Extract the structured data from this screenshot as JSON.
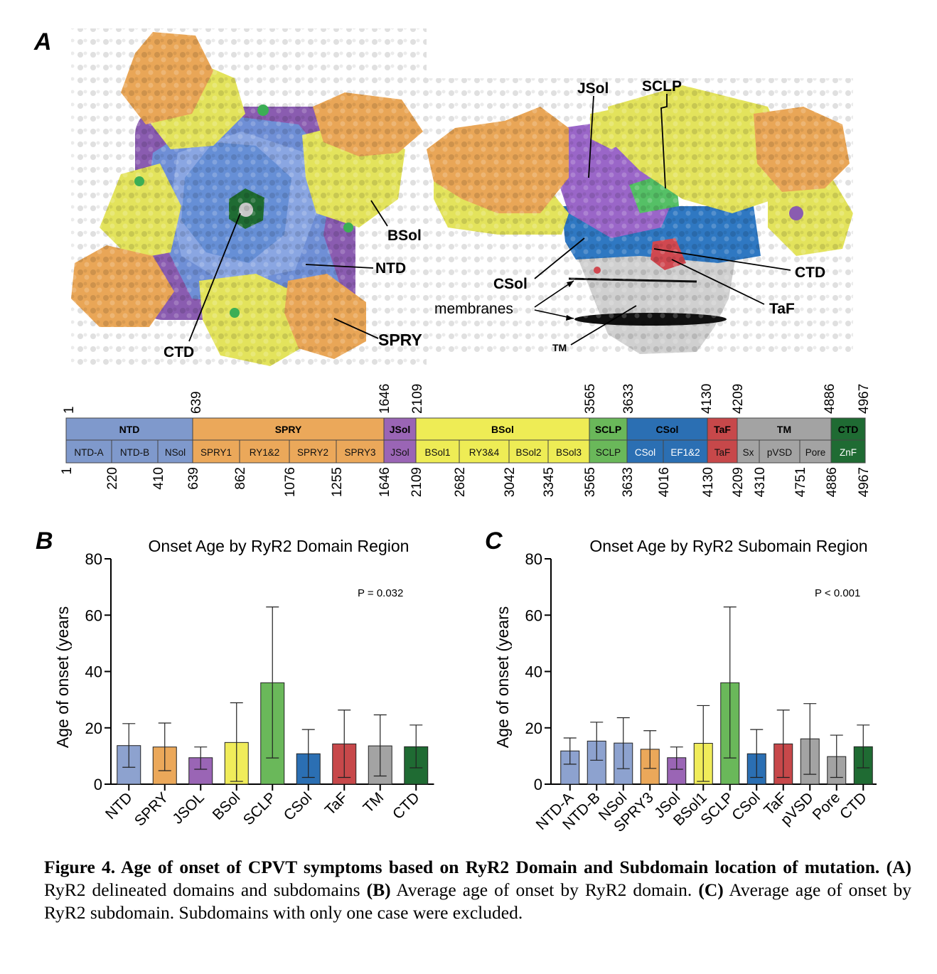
{
  "panel_a": {
    "letter": "A",
    "left_labels": {
      "bsol": "BSol",
      "ntd": "NTD",
      "spry": "SPRY",
      "ctd": "CTD"
    },
    "right_labels": {
      "jsol": "JSol",
      "sclp": "SCLP",
      "ctd": "CTD",
      "csol": "CSol",
      "taf": "TaF",
      "membranes": "membranes",
      "tm": "TM"
    },
    "domain_bar": {
      "domains": [
        {
          "name": "NTD",
          "color": "#7f99cc",
          "subdomains": [
            "NTD-A",
            "NTD-B",
            "NSol"
          ]
        },
        {
          "name": "SPRY",
          "color": "#eba85a",
          "subdomains": [
            "SPRY1",
            "RY1&2",
            "SPRY2",
            "SPRY3"
          ]
        },
        {
          "name": "JSol",
          "color": "#9a65b5",
          "subdomains": [
            "JSol"
          ]
        },
        {
          "name": "BSol",
          "color": "#eeec55",
          "subdomains": [
            "BSol1",
            "RY3&4",
            "BSol2",
            "BSol3"
          ]
        },
        {
          "name": "SCLP",
          "color": "#6ab85a",
          "subdomains": [
            "SCLP"
          ]
        },
        {
          "name": "CSol",
          "color": "#2b6fb3",
          "subdomains": [
            "CSol",
            "EF1&2"
          ]
        },
        {
          "name": "TaF",
          "color": "#c7484a",
          "subdomains": [
            "TaF"
          ]
        },
        {
          "name": "TM",
          "color": "#a3a3a3",
          "subdomains": [
            "Sx",
            "pVSD",
            "Pore"
          ]
        },
        {
          "name": "CTD",
          "color": "#1f6b33",
          "subdomains": [
            "ZnF"
          ]
        }
      ],
      "top_numbers": [
        "1",
        "639",
        "1646",
        "2109",
        "3565",
        "3633",
        "4130",
        "4209",
        "4886",
        "4967"
      ],
      "bottom_numbers": [
        "1",
        "220",
        "410",
        "639",
        "862",
        "1076",
        "1255",
        "1646",
        "2109",
        "2682",
        "3042",
        "3345",
        "3565",
        "3633",
        "4016",
        "4130",
        "4209",
        "4310",
        "4751",
        "4886",
        "4967"
      ]
    }
  },
  "chart_data": [
    {
      "panel": "B",
      "type": "bar",
      "title": "Onset Age by RyR2 Domain Region",
      "xlabel": "",
      "ylabel": "Age of onset (years",
      "ylim": [
        0,
        80
      ],
      "yticks": [
        "0",
        "20",
        "40",
        "60",
        "80"
      ],
      "annotation": "P = 0.032",
      "categories": [
        "NTD",
        "SPRY",
        "JSOL",
        "BSol",
        "SCLP",
        "CSol",
        "TaF",
        "TM",
        "CTD"
      ],
      "values": [
        13.7,
        13.2,
        9.4,
        14.8,
        36.0,
        10.8,
        14.3,
        13.6,
        13.3
      ],
      "err_low": [
        6.0,
        4.8,
        5.3,
        1.0,
        9.3,
        2.4,
        2.4,
        2.9,
        5.8
      ],
      "err_high": [
        21.5,
        21.7,
        13.2,
        28.9,
        62.9,
        19.4,
        26.3,
        24.6,
        21.0
      ],
      "colors": [
        "#8da2cf",
        "#eba85a",
        "#9a65b5",
        "#f0ec5a",
        "#6ab85a",
        "#2b6fb3",
        "#c7484a",
        "#a3a3a3",
        "#1f6b33"
      ]
    },
    {
      "panel": "C",
      "type": "bar",
      "title": "Onset Age by RyR2 Subomain Region",
      "xlabel": "",
      "ylabel": "Age of onset (years",
      "ylim": [
        0,
        80
      ],
      "yticks": [
        "0",
        "20",
        "40",
        "60",
        "80"
      ],
      "annotation": "P < 0.001",
      "categories": [
        "NTD-A",
        "NTD-B",
        "NSol",
        "SPRY3",
        "JSol",
        "BSol1",
        "SCLP",
        "CSol",
        "TaF",
        "pVSD",
        "Pore",
        "CTD"
      ],
      "values": [
        11.8,
        15.3,
        14.6,
        12.4,
        9.4,
        14.5,
        36.0,
        10.8,
        14.3,
        16.1,
        9.8,
        13.3
      ],
      "err_low": [
        7.1,
        8.5,
        5.5,
        5.6,
        5.3,
        1.0,
        9.3,
        2.4,
        2.4,
        3.5,
        2.4,
        5.8
      ],
      "err_high": [
        16.4,
        22.0,
        23.6,
        19.0,
        13.2,
        27.9,
        62.9,
        19.4,
        26.3,
        28.6,
        17.4,
        21.0
      ],
      "colors": [
        "#8da2cf",
        "#8da2cf",
        "#8da2cf",
        "#eba85a",
        "#9a65b5",
        "#f0ec5a",
        "#6ab85a",
        "#2b6fb3",
        "#c7484a",
        "#a3a3a3",
        "#a3a3a3",
        "#1f6b33"
      ]
    }
  ],
  "caption": {
    "bold_lead": "Figure 4. Age of onset of CPVT symptoms based on RyR2 Domain and Subdomain location of mutation.",
    "part_a_label": "(A)",
    "part_a_text": " RyR2 delineated domains and subdomains ",
    "part_b_label": "(B)",
    "part_b_text": " Average age of onset by RyR2 domain. ",
    "part_c_label": "(C)",
    "part_c_text": " Average age of onset by RyR2 subdomain. Subdomains with only one case were excluded."
  }
}
